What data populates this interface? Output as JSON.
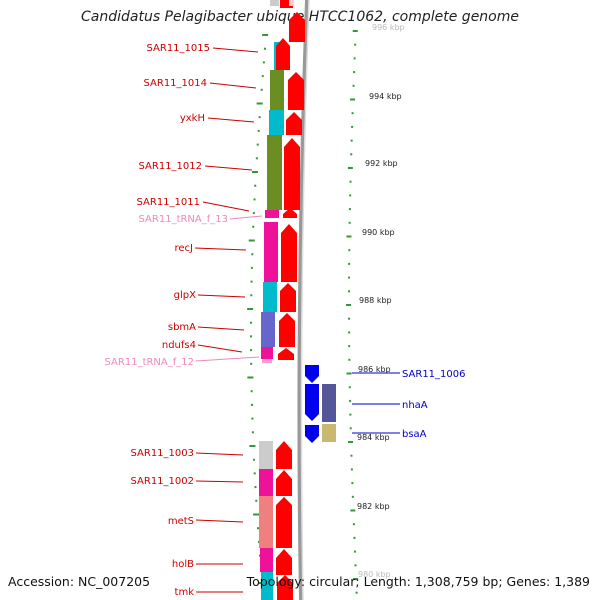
{
  "title": "Candidatus Pelagibacter ubique HTCC1062, complete genome",
  "footer": {
    "accession": "Accession: NC_007205",
    "summary": "Topology: circular; Length: 1,308,759 bp; Genes: 1,389"
  },
  "ticks": [
    {
      "label": "996 kbp",
      "faded": true
    },
    {
      "label": "994 kbp"
    },
    {
      "label": "992 kbp"
    },
    {
      "label": "990 kbp"
    },
    {
      "label": "988 kbp"
    },
    {
      "label": "986 kbp"
    },
    {
      "label": "984 kbp"
    },
    {
      "label": "982 kbp"
    },
    {
      "label": "980 kbp",
      "faded": true
    }
  ],
  "left_labels": [
    "SAR11_1015",
    "SAR11_1014",
    "yxkH",
    "SAR11_1012",
    "SAR11_1011",
    "SAR11_tRNA_f_13",
    "recJ",
    "glpX",
    "sbmA",
    "ndufs4",
    "SAR11_tRNA_f_12",
    "SAR11_1003",
    "SAR11_1002",
    "metS",
    "holB",
    "tmk"
  ],
  "right_labels": [
    "SAR11_1006",
    "nhaA",
    "bsaA"
  ],
  "colors": {
    "red_label": "#cc0000",
    "pink_label": "#ee88bb",
    "blue_label": "#0000cc",
    "forward_cds": "#ff0000",
    "reverse_cds": "#0000ee",
    "ruler": "#339933",
    "backbone": "#999999"
  }
}
